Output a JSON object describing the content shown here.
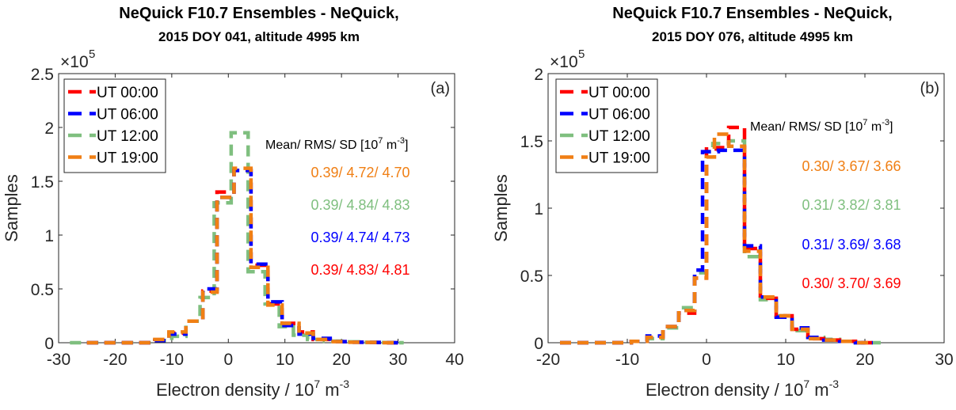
{
  "chart_data": [
    {
      "type": "line",
      "subtype": "step-histogram",
      "panel_label": "(a)",
      "title": "NeQuick F10.7 Ensembles - NeQuick,",
      "subtitle": "2015 DOY 041, altitude 4995 km",
      "xlabel": "Electron density / 10",
      "xlabel_sup": "7",
      "xlabel_unit": "m",
      "xlabel_unit_sup": "-3",
      "ylabel": "Samples",
      "y_multiplier": "×10",
      "y_multiplier_exp": "5",
      "xlim": [
        -30,
        40
      ],
      "ylim": [
        0,
        2.5
      ],
      "xticks": [
        "-30",
        "-20",
        "-10",
        "0",
        "10",
        "20",
        "30",
        "40"
      ],
      "yticks": [
        "0",
        "0.5",
        "1",
        "1.5",
        "2",
        "2.5"
      ],
      "xtick_values": [
        -30,
        -20,
        -10,
        0,
        10,
        20,
        30,
        40
      ],
      "ytick_values": [
        0,
        0.5,
        1,
        1.5,
        2,
        2.5
      ],
      "legend_position": "top-left",
      "stats_header": "Mean/ RMS/ SD [10",
      "stats_header_sup": "7",
      "stats_header_unit": " m",
      "stats_header_unit_sup": "-3",
      "stats_header_end": "]",
      "series": [
        {
          "name": "UT 00:00",
          "color": "#ff0000",
          "stats": "0.39/ 4.83/ 4.81",
          "edges": [
            -25,
            -22,
            -19,
            -16,
            -13,
            -10.5,
            -7.5,
            -4.5,
            -2,
            1,
            4,
            7,
            9.5,
            12.5,
            15,
            18,
            21,
            24,
            27,
            30
          ],
          "values": [
            0,
            0,
            0,
            0,
            0.02,
            0.09,
            0.2,
            0.48,
            1.4,
            1.6,
            0.72,
            0.36,
            0.18,
            0.1,
            0.03,
            0.01,
            0.005,
            0.003,
            0
          ]
        },
        {
          "name": "UT 06:00",
          "color": "#0000ff",
          "stats": "0.39/ 4.74/ 4.73",
          "edges": [
            -25,
            -22,
            -19,
            -16,
            -13,
            -10.5,
            -7.5,
            -4.5,
            -2,
            1,
            4,
            7,
            9.5,
            12.5,
            15,
            18,
            21,
            24,
            27,
            30
          ],
          "values": [
            0,
            0,
            0,
            0,
            0.02,
            0.08,
            0.2,
            0.5,
            1.35,
            1.6,
            0.73,
            0.38,
            0.16,
            0.08,
            0.04,
            0.01,
            0.005,
            0.003,
            0
          ]
        },
        {
          "name": "UT 12:00",
          "color": "#7fbf7f",
          "stats": "0.39/ 4.84/ 4.83",
          "edges": [
            -28,
            -25,
            -22,
            -19,
            -16,
            -13,
            -10,
            -7.5,
            -5,
            -2.5,
            0.5,
            3.5,
            6.5,
            9,
            11.5,
            14,
            17,
            20,
            23,
            26,
            29,
            31
          ],
          "values": [
            0,
            0,
            0,
            0,
            0,
            0.02,
            0.06,
            0.2,
            0.42,
            1.3,
            1.95,
            0.66,
            0.36,
            0.15,
            0.07,
            0.03,
            0.015,
            0.008,
            0.004,
            0.002,
            0
          ]
        },
        {
          "name": "UT 19:00",
          "color": "#f07f14",
          "stats": "0.39/ 4.72/ 4.70",
          "edges": [
            -25,
            -22,
            -19,
            -16,
            -13,
            -10.5,
            -7.5,
            -4.5,
            -2,
            1,
            4,
            7,
            9.5,
            12.5,
            15,
            18,
            21,
            24,
            27,
            30
          ],
          "values": [
            0,
            0,
            0,
            0,
            0.03,
            0.1,
            0.2,
            0.47,
            1.35,
            1.62,
            0.7,
            0.35,
            0.18,
            0.09,
            0.03,
            0.01,
            0.005,
            0.003,
            0
          ]
        }
      ]
    },
    {
      "type": "line",
      "subtype": "step-histogram",
      "panel_label": "(b)",
      "title": "NeQuick F10.7 Ensembles - NeQuick,",
      "subtitle": "2015 DOY 076, altitude 4995 km",
      "xlabel": "Electron density / 10",
      "xlabel_sup": "7",
      "xlabel_unit": "m",
      "xlabel_unit_sup": "-3",
      "ylabel": "Samples",
      "y_multiplier": "×10",
      "y_multiplier_exp": "5",
      "xlim": [
        -20,
        30
      ],
      "ylim": [
        0,
        2
      ],
      "xticks": [
        "-20",
        "-10",
        "0",
        "10",
        "20",
        "30"
      ],
      "yticks": [
        "0",
        "0.5",
        "1",
        "1.5",
        "2"
      ],
      "xtick_values": [
        -20,
        -10,
        0,
        10,
        20,
        30
      ],
      "ytick_values": [
        0,
        0.5,
        1,
        1.5,
        2
      ],
      "legend_position": "top-left",
      "stats_header": "Mean/ RMS/ SD [10",
      "stats_header_sup": "7",
      "stats_header_unit": " m",
      "stats_header_unit_sup": "-3",
      "stats_header_end": "]",
      "series": [
        {
          "name": "UT 00:00",
          "color": "#ff0000",
          "stats": "0.30/ 3.70/ 3.69",
          "edges": [
            -18.5,
            -15.5,
            -12.5,
            -9.5,
            -7.5,
            -5.5,
            -3.5,
            -1.5,
            0,
            1.2,
            2.8,
            4.8,
            6.8,
            8.8,
            10.8,
            12.8,
            14.8,
            16.8,
            18.8,
            21
          ],
          "values": [
            0,
            0,
            0,
            0.01,
            0.04,
            0.12,
            0.22,
            0.48,
            1.44,
            1.45,
            1.6,
            0.7,
            0.33,
            0.2,
            0.1,
            0.03,
            0.02,
            0.01,
            0
          ]
        },
        {
          "name": "UT 06:00",
          "color": "#0000ff",
          "stats": "0.31/ 3.69/ 3.68",
          "edges": [
            -18.5,
            -15.5,
            -12.5,
            -9.5,
            -7.5,
            -5.5,
            -3.5,
            -1.5,
            -0.5,
            1.5,
            2.8,
            4.8,
            6.8,
            8.8,
            10.8,
            12.8,
            14.8,
            16.8,
            18.8,
            21
          ],
          "values": [
            0,
            0,
            0,
            0.01,
            0.05,
            0.12,
            0.24,
            0.54,
            1.42,
            1.43,
            1.43,
            0.72,
            0.34,
            0.19,
            0.11,
            0.04,
            0.02,
            0.01,
            0
          ]
        },
        {
          "name": "UT 12:00",
          "color": "#7fbf7f",
          "stats": "0.31/ 3.82/ 3.81",
          "edges": [
            -18.5,
            -15.5,
            -12.5,
            -9.5,
            -7.5,
            -5.5,
            -3.5,
            -1.5,
            0,
            0.8,
            2.8,
            4.8,
            6.8,
            8.8,
            10.8,
            12.8,
            14.8,
            16.8,
            18.8,
            22
          ],
          "values": [
            0,
            0,
            0,
            0.01,
            0.03,
            0.11,
            0.26,
            0.52,
            1.42,
            1.48,
            1.5,
            0.64,
            0.32,
            0.2,
            0.09,
            0.04,
            0.025,
            0.01,
            0
          ]
        },
        {
          "name": "UT 19:00",
          "color": "#f07f14",
          "stats": "0.30/ 3.67/ 3.66",
          "edges": [
            -18.5,
            -15.5,
            -12.5,
            -9.5,
            -7.5,
            -5.5,
            -3.5,
            -1.5,
            0,
            1.0,
            2.8,
            4.8,
            6.8,
            8.8,
            10.8,
            12.8,
            14.8,
            16.8,
            18.8,
            21
          ],
          "values": [
            0,
            0,
            0,
            0.01,
            0.04,
            0.12,
            0.24,
            0.48,
            1.38,
            1.55,
            1.46,
            0.68,
            0.34,
            0.2,
            0.1,
            0.03,
            0.02,
            0.01,
            0
          ]
        }
      ]
    }
  ]
}
